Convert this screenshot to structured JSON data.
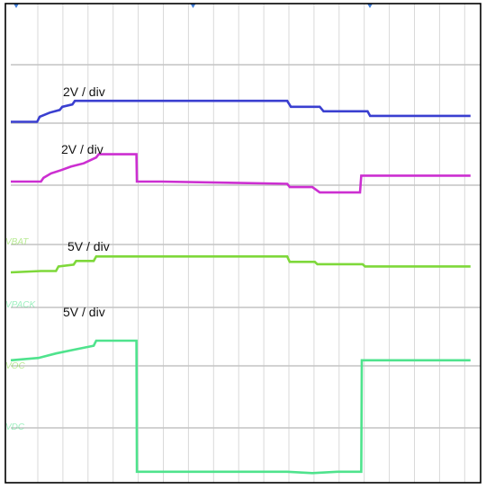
{
  "chart_data": {
    "type": "line",
    "title": "",
    "xlabel": "",
    "ylabel": "",
    "x_divisions": 10,
    "y_divisions": 8,
    "grid": true,
    "trigger_markers_x_div": [
      0,
      5,
      10
    ],
    "series": [
      {
        "label": "2V / div",
        "color": "#3a3fd0",
        "channel_mark": "",
        "ground_div": 1.3,
        "points": [
          [
            0,
            0.07
          ],
          [
            1.05,
            0.07
          ],
          [
            1.15,
            0.18
          ],
          [
            1.55,
            0.27
          ],
          [
            1.95,
            0.33
          ],
          [
            2.05,
            0.4
          ],
          [
            2.45,
            0.45
          ],
          [
            2.55,
            0.53
          ],
          [
            3.1,
            0.53
          ],
          [
            11.0,
            0.53
          ],
          [
            11.15,
            0.4
          ],
          [
            12.3,
            0.4
          ],
          [
            12.45,
            0.3
          ],
          [
            14.2,
            0.3
          ],
          [
            14.3,
            0.2
          ],
          [
            18.3,
            0.2
          ]
        ]
      },
      {
        "label": "2V / div",
        "color": "#cc2fd1",
        "channel_mark": "",
        "ground_div": 2.5,
        "points": [
          [
            0,
            0.02
          ],
          [
            1.2,
            0.02
          ],
          [
            1.3,
            0.1
          ],
          [
            1.6,
            0.2
          ],
          [
            2.0,
            0.27
          ],
          [
            2.4,
            0.35
          ],
          [
            2.9,
            0.42
          ],
          [
            3.4,
            0.55
          ],
          [
            3.5,
            0.62
          ],
          [
            5.0,
            0.62
          ],
          [
            5.02,
            0.02
          ],
          [
            6.0,
            0.02
          ],
          [
            11.0,
            -0.03
          ],
          [
            11.1,
            -0.1
          ],
          [
            12.0,
            -0.1
          ],
          [
            12.3,
            -0.22
          ],
          [
            13.9,
            -0.22
          ],
          [
            13.95,
            0.15
          ],
          [
            18.3,
            0.15
          ]
        ]
      },
      {
        "label": "5V / div",
        "color": "#7ed83a",
        "channel_mark": "VBAT",
        "ground_div": 4.68,
        "points": [
          [
            0,
            0.02
          ],
          [
            1.2,
            0.05
          ],
          [
            1.8,
            0.05
          ],
          [
            1.9,
            0.15
          ],
          [
            2.5,
            0.19
          ],
          [
            2.6,
            0.27
          ],
          [
            3.3,
            0.27
          ],
          [
            3.4,
            0.37
          ],
          [
            11.0,
            0.37
          ],
          [
            11.1,
            0.25
          ],
          [
            12.1,
            0.25
          ],
          [
            12.2,
            0.2
          ],
          [
            14.0,
            0.2
          ],
          [
            14.1,
            0.15
          ],
          [
            18.3,
            0.15
          ]
        ]
      },
      {
        "label": "5V / div",
        "color": "#4fe38d",
        "channel_mark": "VPACK",
        "ground_div": 5.0,
        "points": [
          [
            0,
            -0.45
          ],
          [
            1.1,
            -0.4
          ],
          [
            1.8,
            -0.3
          ],
          [
            2.5,
            -0.22
          ],
          [
            3.3,
            -0.13
          ],
          [
            3.4,
            -0.02
          ],
          [
            5.0,
            -0.02
          ],
          [
            5.02,
            -2.9
          ],
          [
            11.0,
            -2.9
          ],
          [
            12.0,
            -2.93
          ],
          [
            13.0,
            -2.9
          ],
          [
            13.95,
            -2.9
          ],
          [
            13.97,
            -0.45
          ],
          [
            18.3,
            -0.45
          ]
        ]
      }
    ],
    "extra_channel_marks": [
      "VOC",
      "VDC"
    ]
  }
}
